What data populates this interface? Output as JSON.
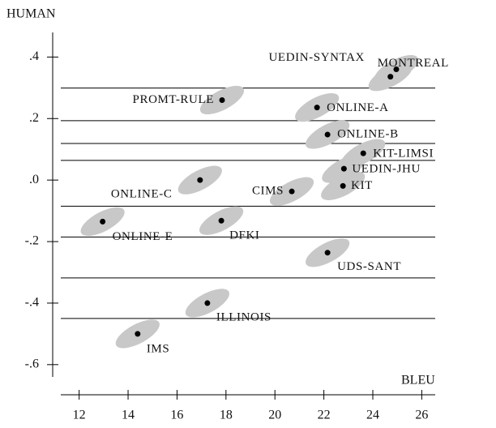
{
  "chart_data": {
    "type": "scatter",
    "xlabel": "BLEU",
    "ylabel": "HUMAN",
    "xlim": [
      11.25,
      26.55
    ],
    "ylim": [
      -0.64,
      0.48
    ],
    "xticks": [
      12,
      14,
      16,
      18,
      20,
      22,
      24,
      26
    ],
    "yticks": [
      {
        "value": 0.4,
        "label": ".4"
      },
      {
        "value": 0.2,
        "label": ".2"
      },
      {
        "value": 0.0,
        "label": ".0"
      },
      {
        "value": -0.2,
        "label": "-.2"
      },
      {
        "value": -0.4,
        "label": "-.4"
      },
      {
        "value": -0.6,
        "label": "-.6"
      }
    ],
    "hlines": [
      0.299,
      0.193,
      0.119,
      0.064,
      -0.085,
      -0.185,
      -0.318,
      -0.45
    ],
    "names": [
      "UEDIN-SYNTAX",
      "MONTREAL",
      "PROMT-RULE",
      "ONLINE-A",
      "ONLINE-B",
      "KIT-LIMSI",
      "UEDIN-JHU",
      "KIT",
      "CIMS",
      "ONLINE-C",
      "ONLINE-E",
      "DFKI",
      "UDS-SANT",
      "ILLINOIS",
      "IMS"
    ],
    "x": [
      24.96,
      24.72,
      17.84,
      21.72,
      22.15,
      23.61,
      22.82,
      22.78,
      20.69,
      16.94,
      12.96,
      17.81,
      22.15,
      17.24,
      14.39
    ],
    "y": [
      0.36,
      0.336,
      0.26,
      0.236,
      0.148,
      0.087,
      0.037,
      -0.019,
      -0.037,
      0.0,
      -0.135,
      -0.132,
      -0.236,
      -0.4,
      -0.5
    ],
    "color": "#000000",
    "ellipse_color": "#c8c8c8"
  }
}
